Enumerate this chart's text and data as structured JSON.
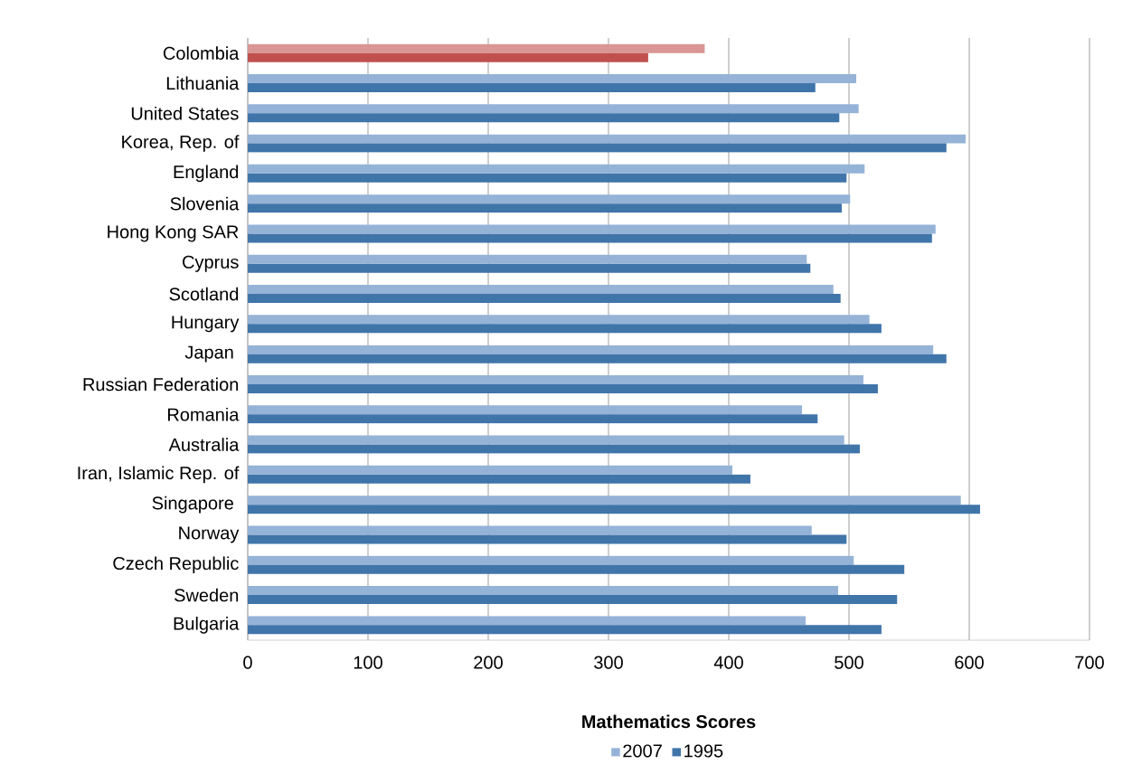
{
  "chart_data": {
    "type": "bar",
    "orientation": "horizontal",
    "xlabel": "Mathematics Scores",
    "categories": [
      "Colombia",
      "Lithuania",
      "United States",
      "Korea, Rep. of",
      "England",
      "Slovenia",
      "Hong Kong SAR",
      "Cyprus",
      "Scotland",
      "Hungary",
      "Japan ",
      "Russian Federation",
      "Romania",
      "Australia",
      "Iran, Islamic Rep. of",
      "Singapore ",
      "Norway",
      "Czech Republic",
      "Sweden",
      "Bulgaria"
    ],
    "series": [
      {
        "name": "2007",
        "color": "#95b3d7",
        "colors": [
          "#d99694",
          "#95b3d7",
          "#95b3d7",
          "#95b3d7",
          "#95b3d7",
          "#95b3d7",
          "#95b3d7",
          "#95b3d7",
          "#95b3d7",
          "#95b3d7",
          "#95b3d7",
          "#95b3d7",
          "#95b3d7",
          "#95b3d7",
          "#95b3d7",
          "#95b3d7",
          "#95b3d7",
          "#95b3d7",
          "#95b3d7",
          "#95b3d7"
        ],
        "values": [
          380,
          506,
          508,
          597,
          513,
          501,
          572,
          465,
          487,
          517,
          570,
          512,
          461,
          496,
          403,
          593,
          469,
          504,
          491,
          464
        ]
      },
      {
        "name": "1995",
        "color": "#4075aa",
        "colors": [
          "#c0504d",
          "#4075aa",
          "#4075aa",
          "#4075aa",
          "#4075aa",
          "#4075aa",
          "#4075aa",
          "#4075aa",
          "#4075aa",
          "#4075aa",
          "#4075aa",
          "#4075aa",
          "#4075aa",
          "#4075aa",
          "#4075aa",
          "#4075aa",
          "#4075aa",
          "#4075aa",
          "#4075aa",
          "#4075aa"
        ],
        "values": [
          333,
          472,
          492,
          581,
          498,
          494,
          569,
          468,
          493,
          527,
          581,
          524,
          474,
          509,
          418,
          609,
          498,
          546,
          540,
          527
        ]
      }
    ],
    "xlim": [
      0,
      700
    ],
    "xticks": [
      0,
      100,
      200,
      300,
      400,
      500,
      600,
      700
    ],
    "grid": "x",
    "legend": "bottom"
  }
}
